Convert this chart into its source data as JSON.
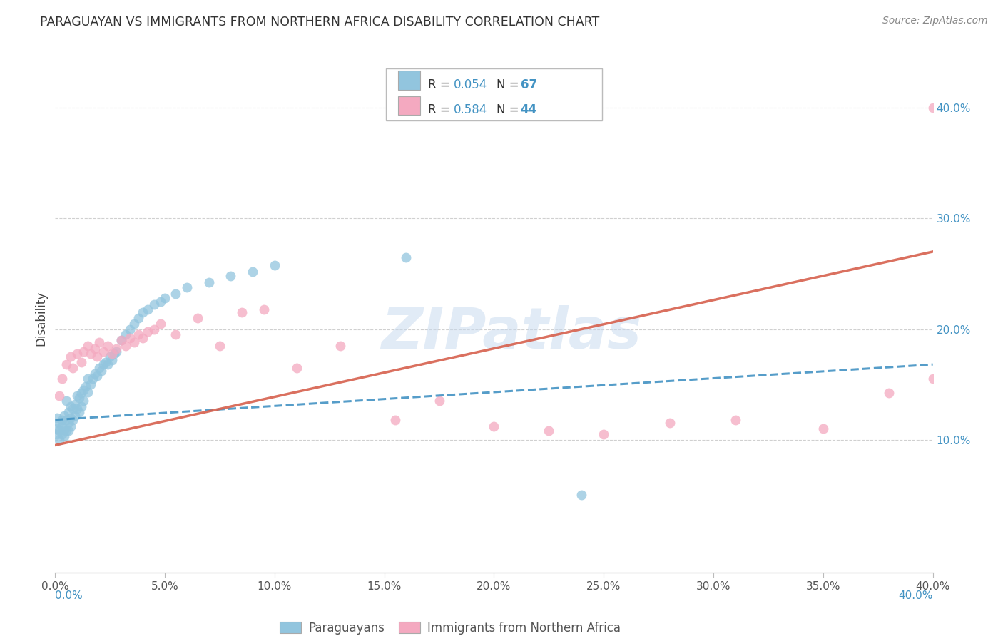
{
  "title": "PARAGUAYAN VS IMMIGRANTS FROM NORTHERN AFRICA DISABILITY CORRELATION CHART",
  "source": "Source: ZipAtlas.com",
  "ylabel": "Disability",
  "xlim": [
    0.0,
    0.4
  ],
  "ylim": [
    -0.02,
    0.44
  ],
  "xticks": [
    0.0,
    0.05,
    0.1,
    0.15,
    0.2,
    0.25,
    0.3,
    0.35,
    0.4
  ],
  "yticks_right": [
    0.1,
    0.2,
    0.3,
    0.4
  ],
  "blue_color": "#92c5de",
  "pink_color": "#f4a9c0",
  "blue_line_color": "#4393c3",
  "pink_line_color": "#d6604d",
  "watermark": "ZIPatlas",
  "legend_text_color": "#4393c3",
  "paraguayans_x": [
    0.001,
    0.001,
    0.001,
    0.002,
    0.002,
    0.002,
    0.003,
    0.003,
    0.003,
    0.004,
    0.004,
    0.004,
    0.005,
    0.005,
    0.005,
    0.006,
    0.006,
    0.006,
    0.007,
    0.007,
    0.007,
    0.008,
    0.008,
    0.009,
    0.009,
    0.01,
    0.01,
    0.011,
    0.011,
    0.012,
    0.012,
    0.013,
    0.013,
    0.014,
    0.015,
    0.015,
    0.016,
    0.017,
    0.018,
    0.019,
    0.02,
    0.021,
    0.022,
    0.023,
    0.024,
    0.025,
    0.026,
    0.027,
    0.028,
    0.03,
    0.032,
    0.034,
    0.036,
    0.038,
    0.04,
    0.042,
    0.045,
    0.048,
    0.05,
    0.055,
    0.06,
    0.07,
    0.08,
    0.09,
    0.1,
    0.16,
    0.24
  ],
  "paraguayans_y": [
    0.12,
    0.11,
    0.105,
    0.115,
    0.108,
    0.1,
    0.112,
    0.118,
    0.105,
    0.122,
    0.109,
    0.103,
    0.135,
    0.118,
    0.108,
    0.125,
    0.115,
    0.108,
    0.13,
    0.12,
    0.112,
    0.128,
    0.118,
    0.132,
    0.122,
    0.14,
    0.128,
    0.138,
    0.125,
    0.142,
    0.13,
    0.145,
    0.135,
    0.148,
    0.155,
    0.143,
    0.15,
    0.155,
    0.16,
    0.158,
    0.165,
    0.162,
    0.168,
    0.17,
    0.168,
    0.175,
    0.172,
    0.178,
    0.18,
    0.19,
    0.195,
    0.2,
    0.205,
    0.21,
    0.215,
    0.218,
    0.222,
    0.225,
    0.228,
    0.232,
    0.238,
    0.242,
    0.248,
    0.252,
    0.258,
    0.265,
    0.05
  ],
  "immigrants_x": [
    0.002,
    0.003,
    0.005,
    0.007,
    0.008,
    0.01,
    0.012,
    0.013,
    0.015,
    0.016,
    0.018,
    0.019,
    0.02,
    0.022,
    0.024,
    0.026,
    0.028,
    0.03,
    0.032,
    0.034,
    0.036,
    0.038,
    0.04,
    0.042,
    0.045,
    0.048,
    0.055,
    0.065,
    0.075,
    0.085,
    0.095,
    0.11,
    0.13,
    0.155,
    0.175,
    0.2,
    0.225,
    0.25,
    0.28,
    0.31,
    0.35,
    0.38,
    0.4,
    0.4
  ],
  "immigrants_y": [
    0.14,
    0.155,
    0.168,
    0.175,
    0.165,
    0.178,
    0.17,
    0.18,
    0.185,
    0.178,
    0.182,
    0.175,
    0.188,
    0.18,
    0.185,
    0.178,
    0.182,
    0.19,
    0.185,
    0.192,
    0.188,
    0.195,
    0.192,
    0.198,
    0.2,
    0.205,
    0.195,
    0.21,
    0.185,
    0.215,
    0.218,
    0.165,
    0.185,
    0.118,
    0.135,
    0.112,
    0.108,
    0.105,
    0.115,
    0.118,
    0.11,
    0.142,
    0.155,
    0.4
  ],
  "blue_trendline_x": [
    0.0,
    0.4
  ],
  "blue_trendline_y": [
    0.118,
    0.168
  ],
  "pink_trendline_x": [
    0.0,
    0.4
  ],
  "pink_trendline_y": [
    0.095,
    0.27
  ],
  "background_color": "#ffffff",
  "grid_color": "#d0d0d0"
}
